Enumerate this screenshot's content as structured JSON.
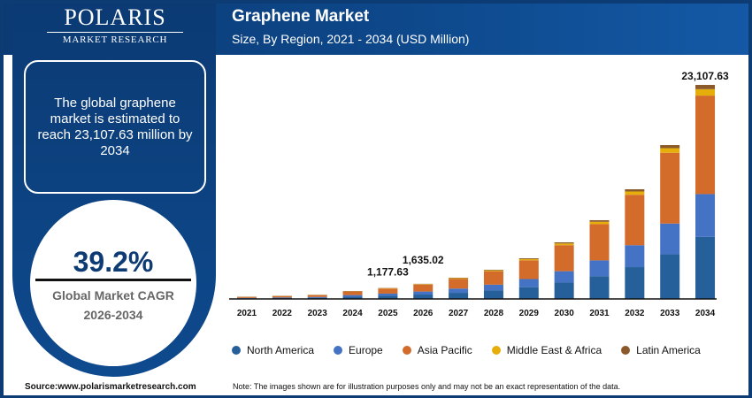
{
  "logo": {
    "name": "POLARIS",
    "tagline": "MARKET RESEARCH"
  },
  "header": {
    "title": "Graphene Market",
    "subtitle": "Size, By Region, 2021 - 2034 (USD Million)"
  },
  "summary": {
    "text": "The global graphene market is estimated to reach 23,107.63 million by 2034"
  },
  "cagr": {
    "value": "39.2%",
    "label_line1": "Global Market CAGR",
    "label_line2": "2026-2034"
  },
  "footer": {
    "source": "Source:www.polarismarketresearch.com",
    "note": "Note: The images shown are for illustration purposes only and may not be an exact representation of the data."
  },
  "colors": {
    "North America": "#26609a",
    "Europe": "#4472c4",
    "Asia Pacific": "#d36b2a",
    "Middle East & Africa": "#e5ae0b",
    "Latin America": "#8b5a2b"
  },
  "chart_data": {
    "type": "bar",
    "stacked": true,
    "title": "Graphene Market",
    "subtitle": "Size, By Region, 2021 - 2034 (USD Million)",
    "categories": [
      "2021",
      "2022",
      "2023",
      "2024",
      "2025",
      "2026",
      "2027",
      "2028",
      "2029",
      "2030",
      "2031",
      "2032",
      "2033",
      "2034"
    ],
    "ylim": [
      0,
      23107.63
    ],
    "grid": false,
    "legend": "bottom",
    "series": [
      {
        "name": "North America",
        "values": [
          67,
          93,
          128,
          247,
          341.5,
          474.2,
          664,
          914,
          1273,
          1772,
          2465,
          3434,
          4817,
          6701.2
        ]
      },
      {
        "name": "Europe",
        "values": [
          46,
          64,
          88,
          170,
          235.5,
          327.0,
          458,
          630,
          878,
          1222,
          1700,
          2368,
          3322,
          4621.5
        ]
      },
      {
        "name": "Asia Pacific",
        "values": [
          106,
          147,
          202,
          391,
          541.7,
          752.1,
          1053,
          1449,
          2019,
          2811,
          3910,
          5446,
          7641,
          10629.5
        ]
      },
      {
        "name": "Middle East & Africa",
        "values": [
          7,
          10,
          13,
          26,
          35.3,
          49.1,
          69,
          95,
          132,
          183,
          255,
          355,
          498,
          693.2
        ]
      },
      {
        "name": "Latin America",
        "values": [
          5,
          6,
          9,
          17,
          23.6,
          32.7,
          46,
          63,
          88,
          122,
          170,
          237,
          332,
          462.2
        ]
      }
    ],
    "data_labels": [
      {
        "category": "2025",
        "text": "1,177.63"
      },
      {
        "category": "2026",
        "text": "1,635.02"
      },
      {
        "category": "2034",
        "text": "23,107.63"
      }
    ]
  }
}
